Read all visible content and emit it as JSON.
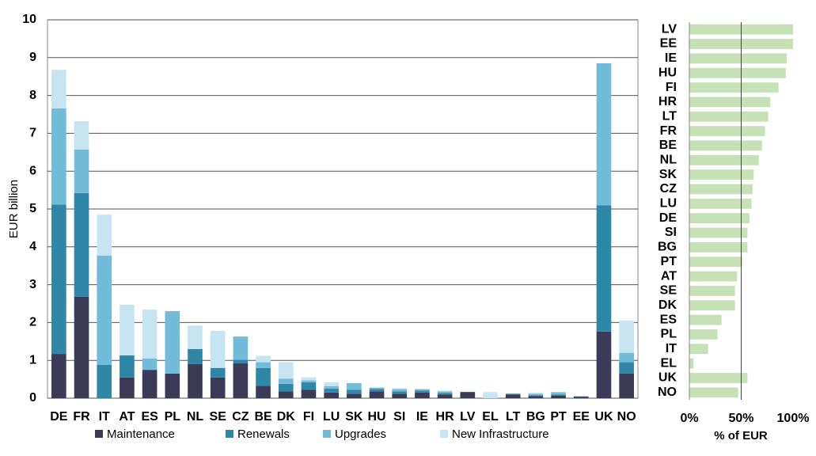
{
  "chart_data": [
    {
      "type": "stacked_bar",
      "y_label": "EUR billion",
      "categories": [
        "DE",
        "FR",
        "IT",
        "AT",
        "ES",
        "PL",
        "NL",
        "SE",
        "CZ",
        "BE",
        "DK",
        "FI",
        "LU",
        "SK",
        "HU",
        "SI",
        "IE",
        "HR",
        "LV",
        "EL",
        "LT",
        "BG",
        "PT",
        "EE",
        "UK",
        "NO"
      ],
      "series": [
        {
          "name": "Maintenance",
          "color": "#3b3b58",
          "values": [
            1.17,
            2.68,
            0,
            0.55,
            0.75,
            0.65,
            0.9,
            0.55,
            0.92,
            0.33,
            0.18,
            0.22,
            0.15,
            0.12,
            0.18,
            0.12,
            0.15,
            0.1,
            0.16,
            0,
            0.1,
            0.06,
            0.07,
            0.04,
            1.76,
            0.65
          ]
        },
        {
          "name": "Renewals",
          "color": "#2e87a6",
          "values": [
            3.95,
            2.74,
            0.88,
            0.58,
            0,
            0,
            0.4,
            0.25,
            0.1,
            0.47,
            0.2,
            0.2,
            0.1,
            0.1,
            0.06,
            0.06,
            0.05,
            0.04,
            0.01,
            0,
            0.02,
            0.02,
            0.03,
            0.01,
            3.34,
            0.3
          ]
        },
        {
          "name": "Upgrades",
          "color": "#72bcd9",
          "values": [
            2.54,
            1.15,
            2.89,
            0,
            0.3,
            1.65,
            0,
            0,
            0.61,
            0.15,
            0.14,
            0.05,
            0.07,
            0.18,
            0.04,
            0.06,
            0.04,
            0.04,
            0,
            0,
            0,
            0.04,
            0.06,
            0,
            3.75,
            0.25
          ]
        },
        {
          "name": "New Infrastructure",
          "color": "#c6e5f0",
          "values": [
            1.02,
            0.75,
            1.08,
            1.34,
            1.29,
            0,
            0.62,
            0.98,
            0,
            0.17,
            0.43,
            0.08,
            0.1,
            0,
            0,
            0.02,
            0,
            0.02,
            0,
            0.16,
            0.01,
            0.03,
            0,
            0,
            0,
            0.85
          ]
        }
      ],
      "ylim": [
        0,
        10
      ],
      "yticks": [
        0,
        1,
        2,
        3,
        4,
        5,
        6,
        7,
        8,
        9,
        10
      ],
      "grid": true
    },
    {
      "type": "barh",
      "x_label": "% of EUR",
      "categories": [
        "LV",
        "EE",
        "IE",
        "HU",
        "FI",
        "HR",
        "LT",
        "FR",
        "BE",
        "NL",
        "SK",
        "CZ",
        "LU",
        "DE",
        "SI",
        "BG",
        "PT",
        "AT",
        "SE",
        "DK",
        "ES",
        "PL",
        "IT",
        "EL",
        "UK",
        "NO"
      ],
      "values": [
        100,
        100,
        94,
        93,
        86,
        78,
        76,
        73,
        70,
        67,
        62,
        61,
        60,
        58,
        56,
        56,
        51,
        46,
        44,
        44,
        31,
        27,
        18,
        4,
        56,
        47
      ],
      "color": "#c5e1b5",
      "xlim": [
        0,
        100
      ],
      "xticks": [
        {
          "value": 0,
          "label": "0%"
        },
        {
          "value": 50,
          "label": "50%"
        },
        {
          "value": 100,
          "label": "100%"
        }
      ]
    }
  ]
}
